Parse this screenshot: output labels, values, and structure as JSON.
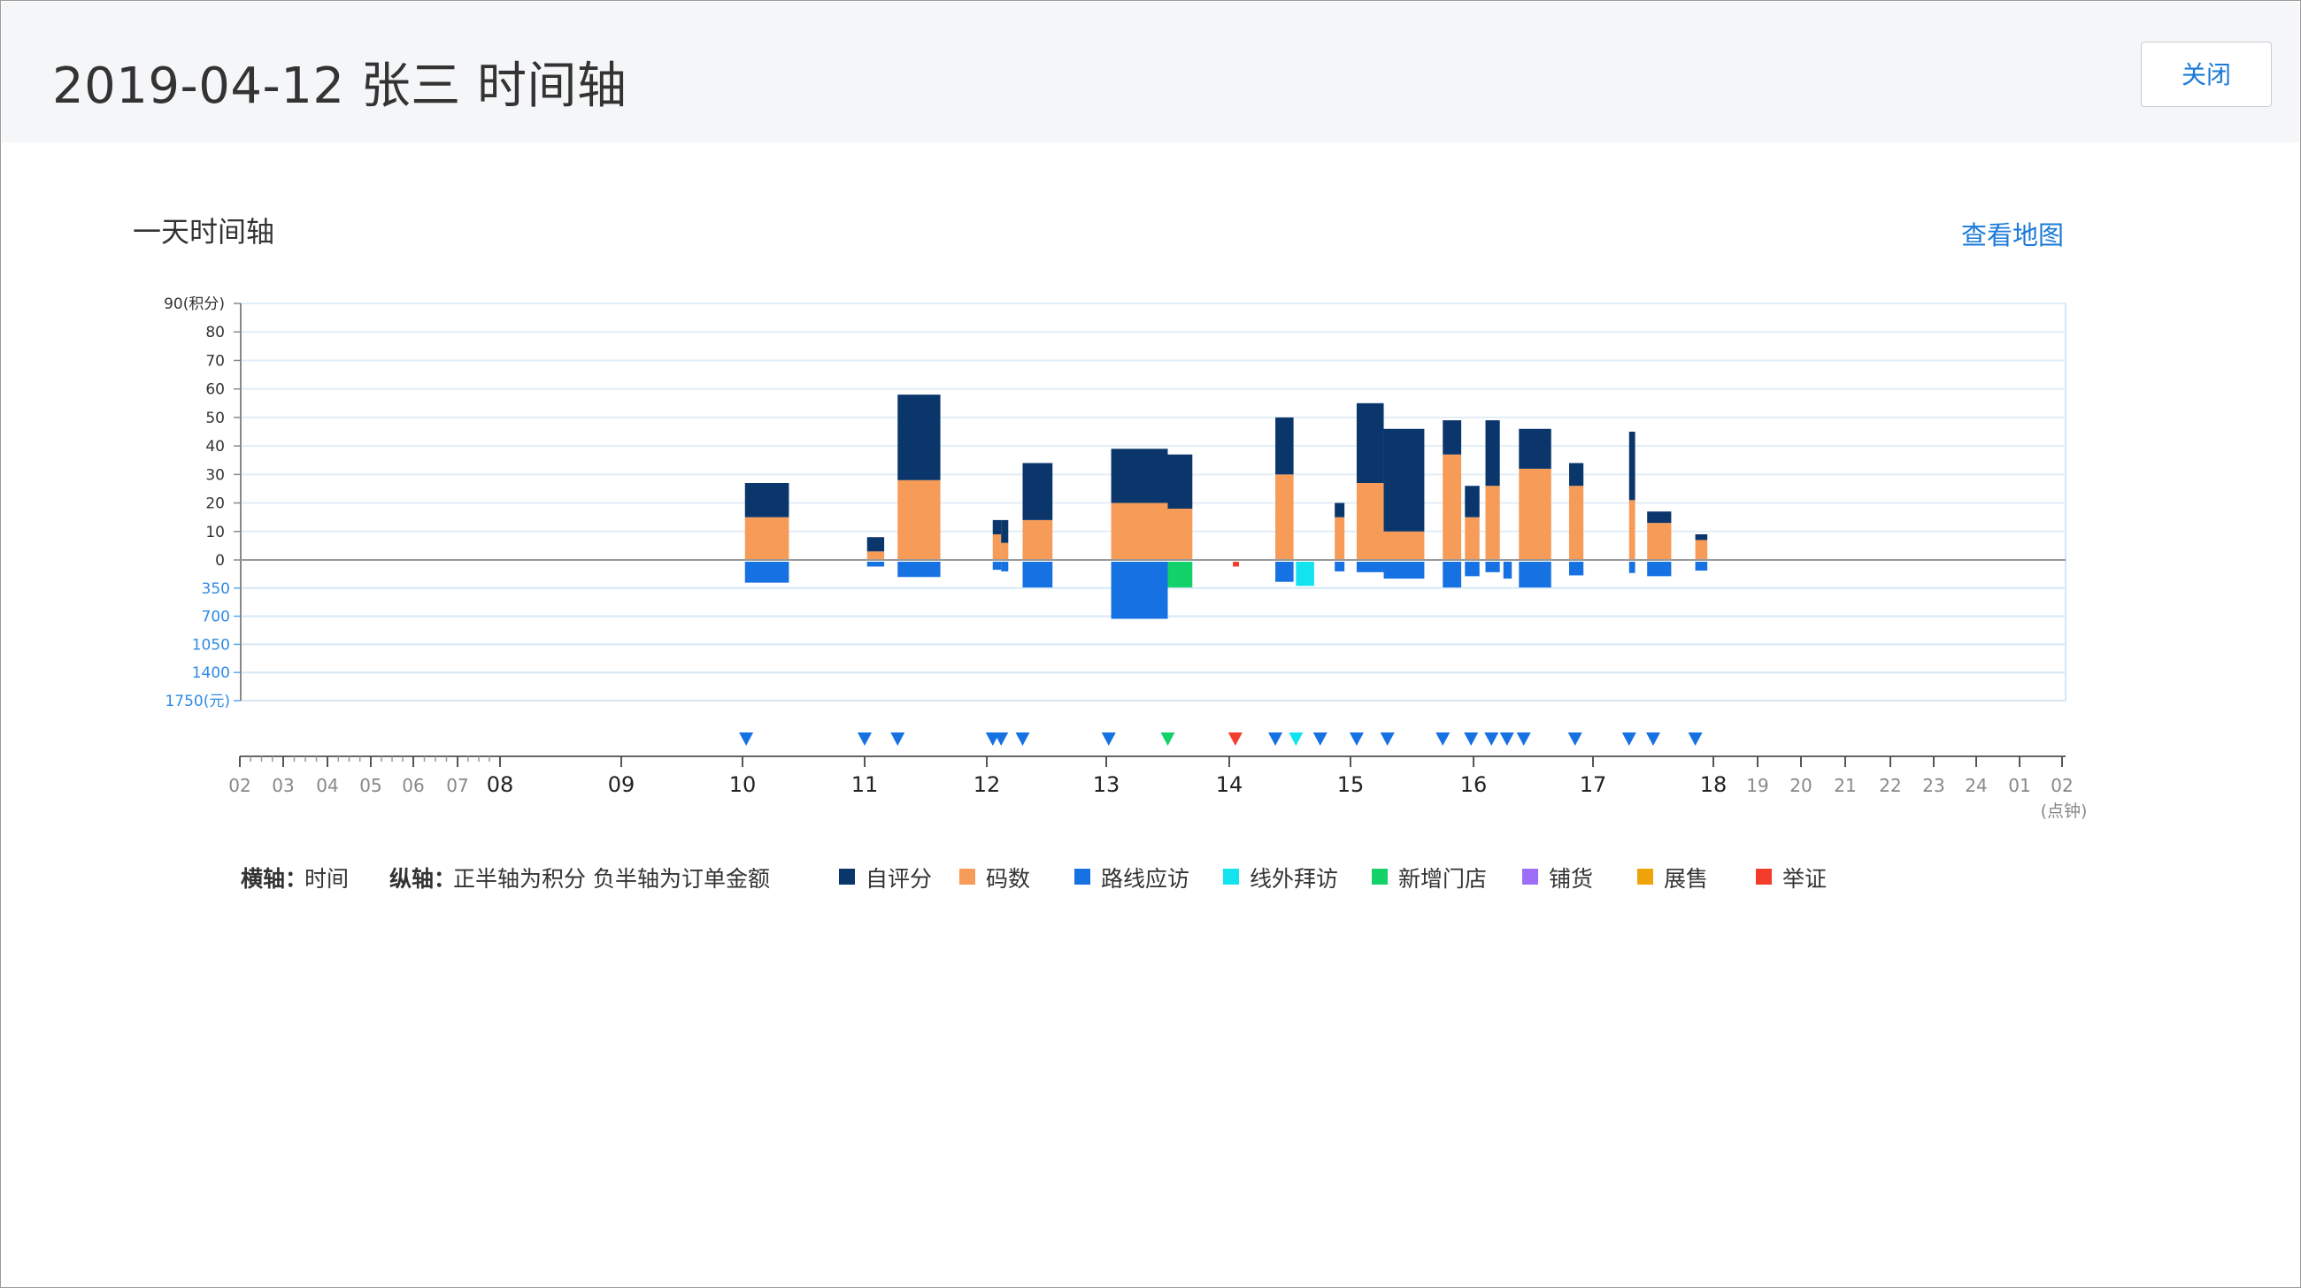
{
  "header": {
    "title": "2019-04-12 张三 时间轴",
    "close_label": "关闭"
  },
  "section": {
    "title": "一天时间轴",
    "map_link": "查看地图"
  },
  "legend": {
    "x_axis_label": "横轴：",
    "x_axis_value": "时间",
    "y_axis_label": "纵轴：",
    "y_axis_value": "正半轴为积分  负半轴为订单金额",
    "items": [
      {
        "name": "自评分",
        "color": "#0b366b"
      },
      {
        "name": "码数",
        "color": "#f69b58"
      },
      {
        "name": "路线应访",
        "color": "#1671e2"
      },
      {
        "name": "线外拜访",
        "color": "#12e3ef"
      },
      {
        "name": "新增门店",
        "color": "#14d26a"
      },
      {
        "name": "铺货",
        "color": "#9d6ff8"
      },
      {
        "name": "展售",
        "color": "#eea409"
      },
      {
        "name": "举证",
        "color": "#f33d2c"
      }
    ]
  },
  "chart_data": {
    "type": "bar",
    "y_positive": {
      "ticks": [
        "90(积分)",
        "80",
        "70",
        "60",
        "50",
        "40",
        "30",
        "20",
        "10",
        "0"
      ],
      "unit": "积分",
      "range": [
        0,
        90
      ]
    },
    "y_negative": {
      "ticks": [
        "350",
        "700",
        "1050",
        "1400",
        "1750(元)"
      ],
      "unit": "元",
      "range": [
        0,
        1750
      ]
    },
    "x_ticks": [
      {
        "label": "02",
        "major": false
      },
      {
        "label": "03",
        "major": false
      },
      {
        "label": "04",
        "major": false
      },
      {
        "label": "05",
        "major": false
      },
      {
        "label": "06",
        "major": false
      },
      {
        "label": "07",
        "major": false
      },
      {
        "label": "08",
        "major": true
      },
      {
        "label": "09",
        "major": true
      },
      {
        "label": "10",
        "major": true
      },
      {
        "label": "11",
        "major": true
      },
      {
        "label": "12",
        "major": true
      },
      {
        "label": "13",
        "major": true
      },
      {
        "label": "14",
        "major": true
      },
      {
        "label": "15",
        "major": true
      },
      {
        "label": "16",
        "major": true
      },
      {
        "label": "17",
        "major": true
      },
      {
        "label": "18",
        "major": true
      },
      {
        "label": "19",
        "major": false
      },
      {
        "label": "20",
        "major": false
      },
      {
        "label": "21",
        "major": false
      },
      {
        "label": "22",
        "major": false
      },
      {
        "label": "23",
        "major": false
      },
      {
        "label": "24",
        "major": false
      },
      {
        "label": "01",
        "major": false
      },
      {
        "label": "02",
        "major": false
      }
    ],
    "x_unit_label": "(点钟)",
    "bars": [
      {
        "start": 10.02,
        "end": 10.38,
        "self_score": 12,
        "code_count": 15,
        "amount": 260,
        "type": "路线应访"
      },
      {
        "start": 11.02,
        "end": 11.16,
        "self_score": 5,
        "code_count": 3,
        "amount": 60,
        "type": "路线应访"
      },
      {
        "start": 11.27,
        "end": 11.62,
        "self_score": 30,
        "code_count": 28,
        "amount": 190,
        "type": "路线应访"
      },
      {
        "start": 12.05,
        "end": 12.12,
        "self_score": 5,
        "code_count": 9,
        "amount": 100,
        "type": "路线应访"
      },
      {
        "start": 12.12,
        "end": 12.18,
        "self_score": 8,
        "code_count": 6,
        "amount": 120,
        "type": "路线应访"
      },
      {
        "start": 12.3,
        "end": 12.55,
        "self_score": 20,
        "code_count": 14,
        "amount": 320,
        "type": "路线应访"
      },
      {
        "start": 13.04,
        "end": 13.5,
        "self_score": 19,
        "code_count": 20,
        "amount": 710,
        "type": "路线应访"
      },
      {
        "start": 13.5,
        "end": 13.7,
        "self_score": 19,
        "code_count": 18,
        "amount": 320,
        "type": "新增门店"
      },
      {
        "start": 14.03,
        "end": 14.08,
        "self_score": 0,
        "code_count": 0,
        "amount": 60,
        "type": "举证"
      },
      {
        "start": 14.38,
        "end": 14.53,
        "self_score": 20,
        "code_count": 30,
        "amount": 250,
        "type": "路线应访"
      },
      {
        "start": 14.55,
        "end": 14.7,
        "self_score": 0,
        "code_count": 0,
        "amount": 300,
        "type": "线外拜访"
      },
      {
        "start": 14.87,
        "end": 14.95,
        "self_score": 5,
        "code_count": 15,
        "amount": 120,
        "type": "路线应访"
      },
      {
        "start": 15.05,
        "end": 15.27,
        "self_score": 28,
        "code_count": 27,
        "amount": 130,
        "type": "路线应访"
      },
      {
        "start": 15.27,
        "end": 15.6,
        "self_score": 36,
        "code_count": 10,
        "amount": 210,
        "type": "路线应访"
      },
      {
        "start": 15.75,
        "end": 15.9,
        "self_score": 12,
        "code_count": 37,
        "amount": 320,
        "type": "路线应访"
      },
      {
        "start": 15.93,
        "end": 16.05,
        "self_score": 11,
        "code_count": 15,
        "amount": 180,
        "type": "路线应访"
      },
      {
        "start": 16.1,
        "end": 16.22,
        "self_score": 23,
        "code_count": 26,
        "amount": 130,
        "type": "路线应访"
      },
      {
        "start": 16.25,
        "end": 16.32,
        "self_score": 0,
        "code_count": 0,
        "amount": 210,
        "type": "路线应访"
      },
      {
        "start": 16.38,
        "end": 16.65,
        "self_score": 14,
        "code_count": 32,
        "amount": 320,
        "type": "路线应访"
      },
      {
        "start": 16.8,
        "end": 16.92,
        "self_score": 8,
        "code_count": 26,
        "amount": 170,
        "type": "路线应访"
      },
      {
        "start": 17.3,
        "end": 17.35,
        "self_score": 24,
        "code_count": 21,
        "amount": 140,
        "type": "路线应访"
      },
      {
        "start": 17.45,
        "end": 17.65,
        "self_score": 4,
        "code_count": 13,
        "amount": 180,
        "type": "路线应访"
      },
      {
        "start": 17.85,
        "end": 17.95,
        "self_score": 2,
        "code_count": 7,
        "amount": 110,
        "type": "路线应访"
      }
    ],
    "markers": [
      {
        "time": 10.03,
        "type": "路线应访"
      },
      {
        "time": 11.0,
        "type": "路线应访"
      },
      {
        "time": 11.27,
        "type": "路线应访"
      },
      {
        "time": 12.05,
        "type": "路线应访"
      },
      {
        "time": 12.12,
        "type": "路线应访"
      },
      {
        "time": 12.3,
        "type": "路线应访"
      },
      {
        "time": 13.02,
        "type": "路线应访"
      },
      {
        "time": 13.5,
        "type": "新增门店"
      },
      {
        "time": 14.05,
        "type": "举证"
      },
      {
        "time": 14.38,
        "type": "路线应访"
      },
      {
        "time": 14.55,
        "type": "线外拜访"
      },
      {
        "time": 14.75,
        "type": "路线应访"
      },
      {
        "time": 15.05,
        "type": "路线应访"
      },
      {
        "time": 15.3,
        "type": "路线应访"
      },
      {
        "time": 15.75,
        "type": "路线应访"
      },
      {
        "time": 15.98,
        "type": "路线应访"
      },
      {
        "time": 16.15,
        "type": "路线应访"
      },
      {
        "time": 16.28,
        "type": "路线应访"
      },
      {
        "time": 16.42,
        "type": "路线应访"
      },
      {
        "time": 16.85,
        "type": "路线应访"
      },
      {
        "time": 17.3,
        "type": "路线应访"
      },
      {
        "time": 17.5,
        "type": "路线应访"
      },
      {
        "time": 17.85,
        "type": "路线应访"
      }
    ]
  }
}
